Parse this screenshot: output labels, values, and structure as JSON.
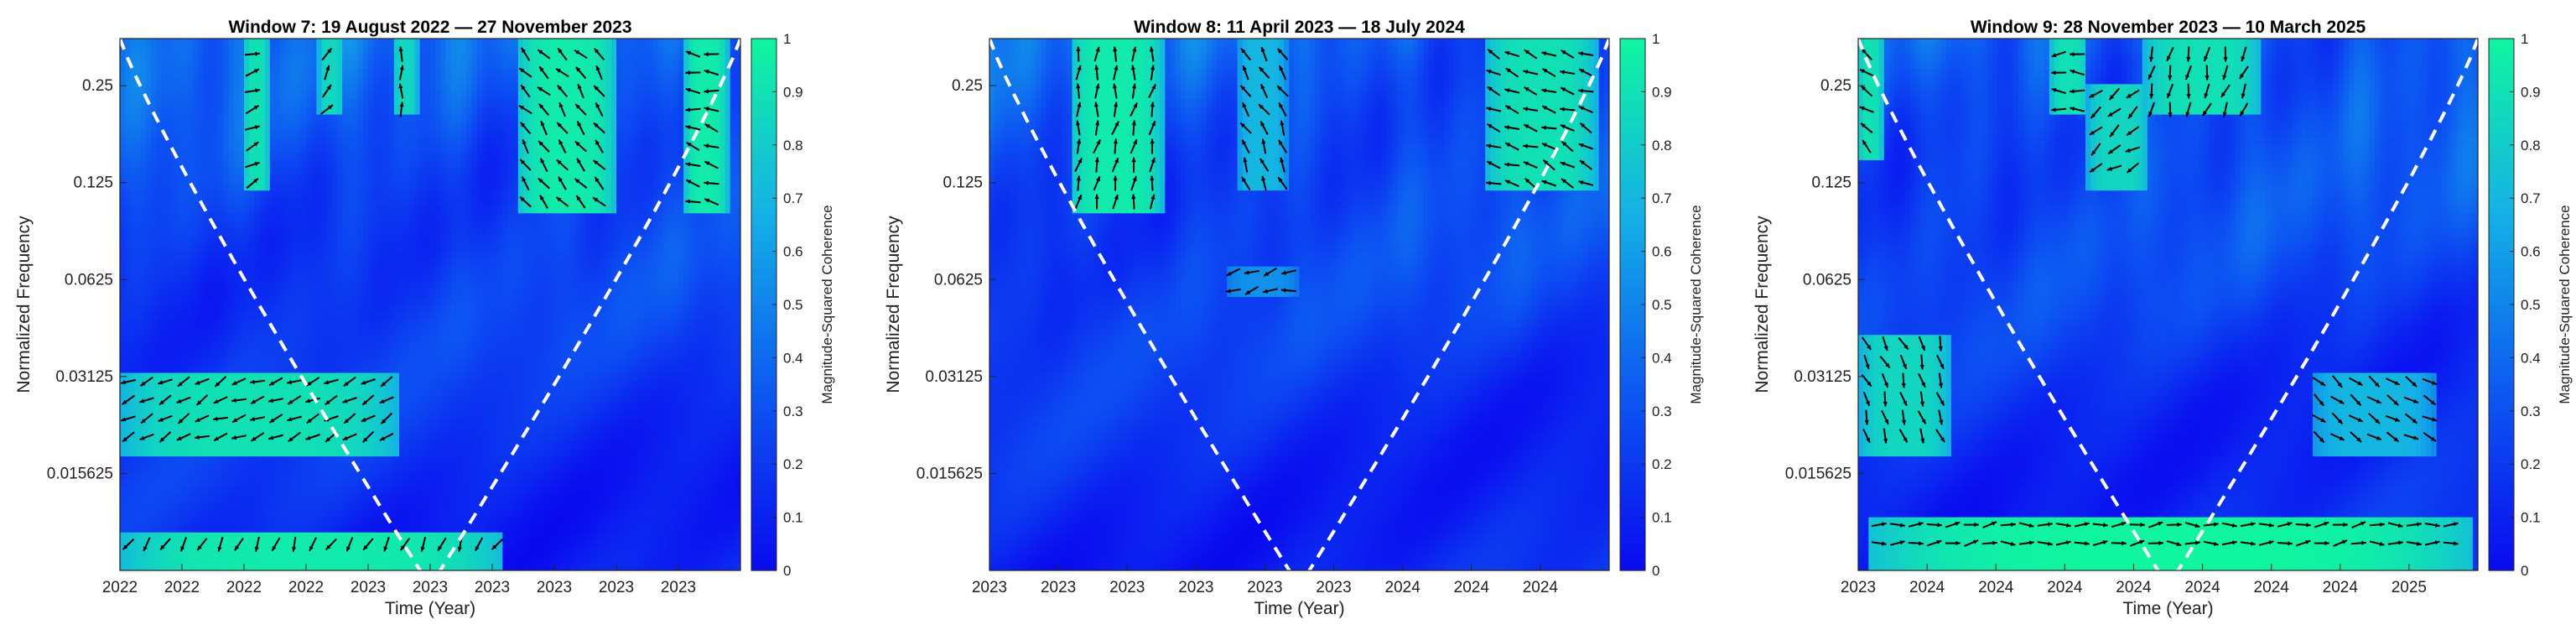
{
  "chart_data": [
    {
      "type": "heatmap",
      "title": "Window 7: 19 August 2022 — 27 November 2023",
      "xlabel": "Time (Year)",
      "ylabel": "Normalized Frequency",
      "colorbar_label": "Magnitude-Squared Coherence",
      "colorbar_ticks": [
        "0",
        "0.1",
        "0.2",
        "0.3",
        "0.4",
        "0.5",
        "0.6",
        "0.7",
        "0.8",
        "0.9",
        "1"
      ],
      "x_tick_labels": [
        "2022",
        "2022",
        "2022",
        "2022",
        "2023",
        "2023",
        "2023",
        "2023",
        "2023",
        "2023"
      ],
      "y_tick_labels": [
        "0.25",
        "0.125",
        "0.0625",
        "0.03125",
        "0.015625"
      ],
      "y_ticks": [
        0.25,
        0.125,
        0.0625,
        0.03125,
        0.015625
      ],
      "ylim": [
        0.0078125,
        0.35
      ],
      "clim": [
        0,
        1
      ],
      "cone_of_influence": true,
      "colormap": [
        "#0a0af0",
        "#0d58f2",
        "#14b0e6",
        "#10f5a0"
      ],
      "high_coherence_regions": [
        {
          "x_frac": [
            0.2,
            0.24
          ],
          "freq": [
            0.12,
            0.35
          ],
          "value": 0.9
        },
        {
          "x_frac": [
            0.32,
            0.36
          ],
          "freq": [
            0.2,
            0.35
          ],
          "value": 0.85
        },
        {
          "x_frac": [
            0.44,
            0.48
          ],
          "freq": [
            0.2,
            0.35
          ],
          "value": 0.85
        },
        {
          "x_frac": [
            0.64,
            0.8
          ],
          "freq": [
            0.1,
            0.35
          ],
          "value": 0.95
        },
        {
          "x_frac": [
            0.91,
            0.98
          ],
          "freq": [
            0.1,
            0.35
          ],
          "value": 0.95
        },
        {
          "x_frac": [
            0.0,
            0.45
          ],
          "freq": [
            0.018,
            0.032
          ],
          "value": 0.9
        },
        {
          "x_frac": [
            0.0,
            0.62
          ],
          "freq": [
            0.0078,
            0.01
          ],
          "value": 0.95
        }
      ]
    },
    {
      "type": "heatmap",
      "title": "Window 8: 11 April 2023 — 18 July 2024",
      "xlabel": "Time (Year)",
      "ylabel": "Normalized Frequency",
      "colorbar_label": "Magnitude-Squared Coherence",
      "colorbar_ticks": [
        "0",
        "0.1",
        "0.2",
        "0.3",
        "0.4",
        "0.5",
        "0.6",
        "0.7",
        "0.8",
        "0.9",
        "1"
      ],
      "x_tick_labels": [
        "2023",
        "2023",
        "2023",
        "2023",
        "2023",
        "2023",
        "2024",
        "2024",
        "2024"
      ],
      "y_tick_labels": [
        "0.25",
        "0.125",
        "0.0625",
        "0.03125",
        "0.015625"
      ],
      "y_ticks": [
        0.25,
        0.125,
        0.0625,
        0.03125,
        0.015625
      ],
      "ylim": [
        0.0078125,
        0.35
      ],
      "clim": [
        0,
        1
      ],
      "cone_of_influence": true,
      "colormap": [
        "#0a0af0",
        "#0d58f2",
        "#14b0e6",
        "#10f5a0"
      ],
      "high_coherence_regions": [
        {
          "x_frac": [
            0.13,
            0.28
          ],
          "freq": [
            0.1,
            0.35
          ],
          "value": 0.95
        },
        {
          "x_frac": [
            0.4,
            0.48
          ],
          "freq": [
            0.12,
            0.35
          ],
          "value": 0.7
        },
        {
          "x_frac": [
            0.8,
            0.98
          ],
          "freq": [
            0.12,
            0.35
          ],
          "value": 0.9
        },
        {
          "x_frac": [
            0.38,
            0.5
          ],
          "freq": [
            0.055,
            0.07
          ],
          "value": 0.55
        }
      ]
    },
    {
      "type": "heatmap",
      "title": "Window 9: 28 November 2023 — 10 March 2025",
      "xlabel": "Time (Year)",
      "ylabel": "Normalized Frequency",
      "colorbar_label": "Magnitude-Squared Coherence",
      "colorbar_ticks": [
        "0",
        "0.1",
        "0.2",
        "0.3",
        "0.4",
        "0.5",
        "0.6",
        "0.7",
        "0.8",
        "0.9",
        "1"
      ],
      "x_tick_labels": [
        "2023",
        "2024",
        "2024",
        "2024",
        "2024",
        "2024",
        "2024",
        "2024",
        "2025"
      ],
      "y_tick_labels": [
        "0.25",
        "0.125",
        "0.0625",
        "0.03125",
        "0.015625"
      ],
      "y_ticks": [
        0.25,
        0.125,
        0.0625,
        0.03125,
        0.015625
      ],
      "ylim": [
        0.0078125,
        0.35
      ],
      "clim": [
        0,
        1
      ],
      "cone_of_influence": true,
      "colormap": [
        "#0a0af0",
        "#0d58f2",
        "#14b0e6",
        "#10f5a0"
      ],
      "high_coherence_regions": [
        {
          "x_frac": [
            0.0,
            0.04
          ],
          "freq": [
            0.15,
            0.35
          ],
          "value": 0.9
        },
        {
          "x_frac": [
            0.31,
            0.37
          ],
          "freq": [
            0.2,
            0.35
          ],
          "value": 0.9
        },
        {
          "x_frac": [
            0.37,
            0.47
          ],
          "freq": [
            0.12,
            0.25
          ],
          "value": 0.85
        },
        {
          "x_frac": [
            0.46,
            0.65
          ],
          "freq": [
            0.2,
            0.35
          ],
          "value": 0.9
        },
        {
          "x_frac": [
            0.0,
            0.15
          ],
          "freq": [
            0.018,
            0.042
          ],
          "value": 0.85
        },
        {
          "x_frac": [
            0.73,
            0.93
          ],
          "freq": [
            0.018,
            0.032
          ],
          "value": 0.7
        },
        {
          "x_frac": [
            0.02,
            0.99
          ],
          "freq": [
            0.0078,
            0.0115
          ],
          "value": 1.0
        }
      ]
    }
  ]
}
